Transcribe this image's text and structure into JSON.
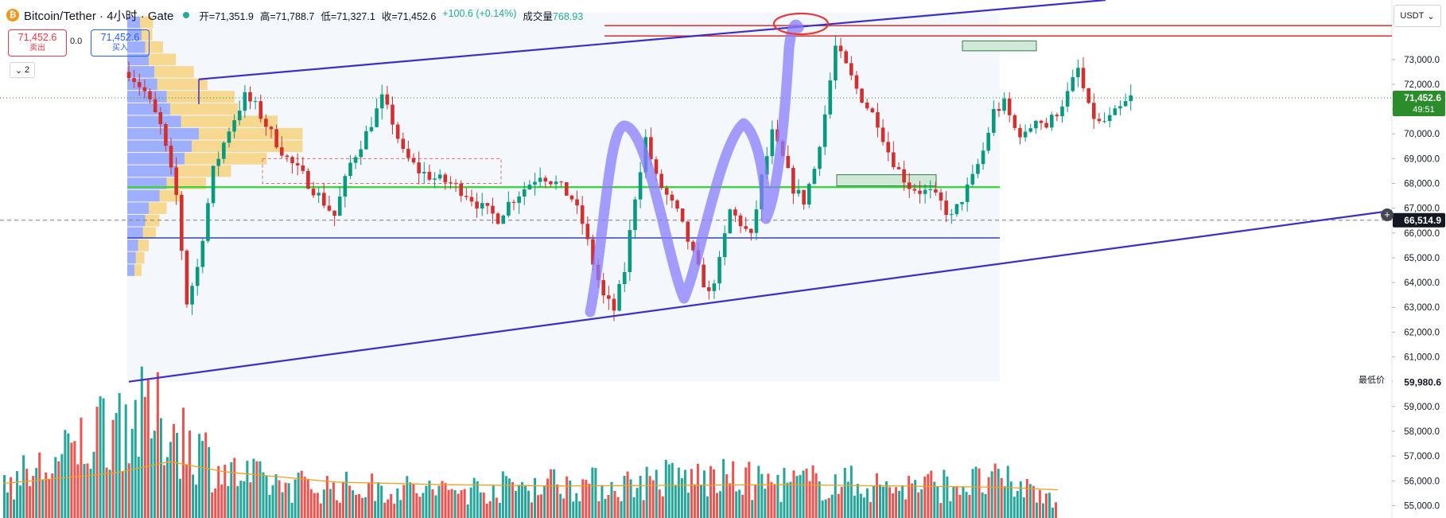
{
  "header": {
    "coin_glyph": "₿",
    "symbol": "Bitcoin/Tether · 4小时 · Gate",
    "ohlc": {
      "open_label": "开=71,351.9",
      "high_label": "高=71,788.7",
      "low_label": "低=71,327.1",
      "close_label": "收=71,452.6",
      "change_label": "+100.6 (+0.14%)",
      "volume_label": "成交量",
      "volume_value": "768.93"
    }
  },
  "trade": {
    "sell_price": "71,452.6",
    "sell_label": "卖出",
    "spread": "0.0",
    "buy_price": "71,452.6",
    "buy_label": "买入"
  },
  "collapse_count": "2",
  "currency": "USDT",
  "lowest_label": "最低价",
  "colors": {
    "up": "#22ab94",
    "down": "#f23645",
    "up_candle": "#089981",
    "down_candle": "#d32f2f",
    "vol_up": "#26a69a",
    "vol_down": "#ef5350",
    "channel": "#3c2fc8",
    "highlight": "#8a7cff",
    "green_line": "#3cd43c",
    "blue_line": "#3344bb",
    "ma": "#f0a020",
    "vp_up": "#8ea2ff",
    "vp_down": "#f6cf75"
  },
  "chart_data": {
    "type": "candlestick",
    "timeframe": "4小时",
    "ylim": [
      54500,
      75400
    ],
    "yticks": [
      "55,000.0",
      "56,000.0",
      "57,000.0",
      "58,000.0",
      "59,000.0",
      "60,000.0",
      "61,000.0",
      "62,000.0",
      "63,000.0",
      "64,000.0",
      "65,000.0",
      "66,000.0",
      "67,000.0",
      "68,000.0",
      "69,000.0",
      "70,000.0",
      "71,000.0",
      "72,000.0",
      "73,000.0"
    ],
    "price_labels": [
      {
        "text": "71,452.6",
        "sub": "49:51",
        "value": 71452.6,
        "style": "current"
      },
      {
        "text": "66,514.9",
        "value": 66514.9,
        "style": "cross"
      },
      {
        "text": "59,980.6",
        "value": 59980.6,
        "style": "low"
      }
    ],
    "levels": [
      {
        "name": "red-resistance",
        "value": 73950
      },
      {
        "name": "green-support",
        "value": 67850
      },
      {
        "name": "blue-support",
        "value": 65800
      },
      {
        "name": "current-price",
        "value": 71452.6
      },
      {
        "name": "crosshair",
        "value": 66514.9
      }
    ],
    "close_path": [
      [
        0,
        72500
      ],
      [
        3,
        71700
      ],
      [
        6,
        70300
      ],
      [
        9,
        67500
      ],
      [
        11,
        63200
      ],
      [
        13,
        64600
      ],
      [
        16,
        68500
      ],
      [
        19,
        70200
      ],
      [
        22,
        71500
      ],
      [
        24,
        71100
      ],
      [
        27,
        70000
      ],
      [
        30,
        69000
      ],
      [
        33,
        68300
      ],
      [
        36,
        67500
      ],
      [
        39,
        66700
      ],
      [
        42,
        68800
      ],
      [
        45,
        70000
      ],
      [
        48,
        71400
      ],
      [
        50,
        70500
      ],
      [
        52,
        69200
      ],
      [
        55,
        68500
      ],
      [
        58,
        68200
      ],
      [
        61,
        68000
      ],
      [
        64,
        67600
      ],
      [
        67,
        67000
      ],
      [
        70,
        66600
      ],
      [
        72,
        67200
      ],
      [
        75,
        67800
      ],
      [
        78,
        68400
      ],
      [
        81,
        68000
      ],
      [
        84,
        67400
      ],
      [
        86,
        66400
      ],
      [
        88,
        64800
      ],
      [
        90,
        63400
      ],
      [
        92,
        62900
      ],
      [
        94,
        64500
      ],
      [
        96,
        67500
      ],
      [
        98,
        69800
      ],
      [
        100,
        68200
      ],
      [
        102,
        67500
      ],
      [
        104,
        66800
      ],
      [
        106,
        65700
      ],
      [
        108,
        64500
      ],
      [
        110,
        63500
      ],
      [
        112,
        64800
      ],
      [
        114,
        66900
      ],
      [
        116,
        66400
      ],
      [
        118,
        65800
      ],
      [
        120,
        68200
      ],
      [
        122,
        70000
      ],
      [
        124,
        69000
      ],
      [
        126,
        67800
      ],
      [
        128,
        67300
      ],
      [
        130,
        68600
      ],
      [
        132,
        70800
      ],
      [
        134,
        73500
      ],
      [
        136,
        72700
      ],
      [
        138,
        71800
      ],
      [
        140,
        71100
      ],
      [
        142,
        70500
      ],
      [
        144,
        69300
      ],
      [
        146,
        68500
      ],
      [
        148,
        67900
      ],
      [
        150,
        67700
      ],
      [
        152,
        67600
      ],
      [
        154,
        67200
      ],
      [
        156,
        66600
      ],
      [
        158,
        67400
      ],
      [
        160,
        68200
      ],
      [
        162,
        69300
      ],
      [
        164,
        70900
      ],
      [
        166,
        71200
      ],
      [
        168,
        70200
      ],
      [
        170,
        69900
      ],
      [
        172,
        70700
      ],
      [
        174,
        70300
      ],
      [
        176,
        70900
      ],
      [
        178,
        71600
      ],
      [
        180,
        72600
      ],
      [
        182,
        71000
      ],
      [
        184,
        70400
      ],
      [
        186,
        70600
      ],
      [
        188,
        71000
      ],
      [
        190,
        71450
      ]
    ],
    "volume_range": [
      0,
      2000
    ],
    "volume_path": [
      [
        0,
        560
      ],
      [
        10,
        850
      ],
      [
        20,
        1600
      ],
      [
        30,
        1450
      ],
      [
        40,
        700
      ],
      [
        50,
        520
      ],
      [
        60,
        480
      ],
      [
        70,
        460
      ],
      [
        80,
        420
      ],
      [
        90,
        480
      ],
      [
        100,
        560
      ],
      [
        110,
        500
      ],
      [
        120,
        620
      ],
      [
        130,
        600
      ],
      [
        140,
        540
      ],
      [
        150,
        560
      ],
      [
        160,
        480
      ],
      [
        170,
        520
      ],
      [
        180,
        560
      ],
      [
        190,
        330
      ]
    ],
    "ma_path": [
      [
        0,
        540
      ],
      [
        20,
        700
      ],
      [
        30,
        880
      ],
      [
        40,
        720
      ],
      [
        60,
        560
      ],
      [
        80,
        520
      ],
      [
        100,
        500
      ],
      [
        120,
        510
      ],
      [
        140,
        520
      ],
      [
        160,
        500
      ],
      [
        180,
        480
      ],
      [
        190,
        440
      ]
    ],
    "volume_profile": {
      "price_step": 500,
      "rows": [
        {
          "price": 74500,
          "up": 0.18,
          "down": 0.18
        },
        {
          "price": 74000,
          "up": 0.2,
          "down": 0.15
        },
        {
          "price": 73500,
          "up": 0.25,
          "down": 0.25
        },
        {
          "price": 73000,
          "up": 0.3,
          "down": 0.38
        },
        {
          "price": 72500,
          "up": 0.38,
          "down": 0.55
        },
        {
          "price": 72000,
          "up": 0.42,
          "down": 0.7
        },
        {
          "price": 71500,
          "up": 0.55,
          "down": 0.95
        },
        {
          "price": 71000,
          "up": 0.6,
          "down": 0.95
        },
        {
          "price": 70500,
          "up": 0.75,
          "down": 1.35
        },
        {
          "price": 70000,
          "up": 1.0,
          "down": 1.45
        },
        {
          "price": 69500,
          "up": 0.9,
          "down": 1.55
        },
        {
          "price": 69000,
          "up": 0.8,
          "down": 1.15
        },
        {
          "price": 68500,
          "up": 0.7,
          "down": 0.75
        },
        {
          "price": 68000,
          "up": 0.55,
          "down": 0.55
        },
        {
          "price": 67500,
          "up": 0.45,
          "down": 0.3
        },
        {
          "price": 67000,
          "up": 0.3,
          "down": 0.25
        },
        {
          "price": 66500,
          "up": 0.25,
          "down": 0.2
        },
        {
          "price": 66000,
          "up": 0.22,
          "down": 0.18
        },
        {
          "price": 65500,
          "up": 0.15,
          "down": 0.15
        },
        {
          "price": 65000,
          "up": 0.12,
          "down": 0.12
        },
        {
          "price": 64500,
          "up": 0.1,
          "down": 0.1
        }
      ]
    },
    "trend_lines": [
      {
        "name": "upper-channel",
        "from": [
          25,
          72200
        ],
        "to": [
          310,
          75400
        ]
      },
      {
        "name": "lower-channel",
        "from": [
          0,
          60000
        ],
        "to": [
          400,
          66900
        ]
      }
    ]
  }
}
